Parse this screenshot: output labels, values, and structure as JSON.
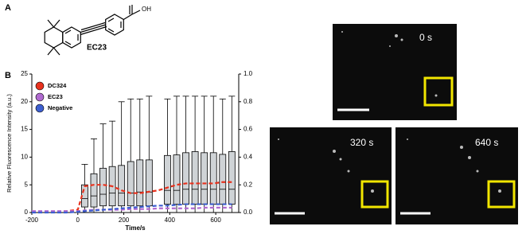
{
  "panel_labels": [
    "A",
    "B"
  ],
  "structure": {
    "name": "EC23",
    "group": "OH"
  },
  "images": [
    {
      "label": "0 s"
    },
    {
      "label": "320 s"
    },
    {
      "label": "640 s"
    }
  ],
  "chart_data": {
    "type": "box",
    "xlabel": "Time/s",
    "ylabel": "Relative Fluorescence Intensity (a.u.)",
    "xlim": [
      -200,
      700
    ],
    "xticks": [
      -200,
      0,
      200,
      400,
      600
    ],
    "ylim": [
      0,
      25
    ],
    "yticks": [
      0,
      5,
      10,
      15,
      20,
      25
    ],
    "y2lim": [
      0,
      1
    ],
    "y2ticks": [
      {
        "value": 0,
        "label": "0.0"
      },
      0.2,
      0.4,
      0.6,
      0.8,
      {
        "value": 1,
        "label": "1.0"
      }
    ],
    "legend": "upper left",
    "box_color": "#cfd3d6",
    "boxes": {
      "x": [
        30,
        70,
        110,
        150,
        190,
        230,
        270,
        310,
        390,
        430,
        470,
        510,
        550,
        590,
        630,
        670
      ],
      "whisker_low": [
        0,
        0,
        0,
        0,
        0,
        0,
        0,
        0,
        0,
        0,
        0,
        0,
        0,
        0,
        0,
        0
      ],
      "q1": [
        1,
        1,
        1.2,
        1.2,
        1.2,
        1.2,
        1.2,
        1.2,
        1.5,
        1.5,
        1.5,
        1.5,
        1.5,
        1.5,
        1.5,
        1.5
      ],
      "median": [
        2.5,
        3,
        3.3,
        3.5,
        3.5,
        3.5,
        3.7,
        3.7,
        4,
        4,
        4.2,
        4.2,
        4.2,
        4.2,
        4.2,
        4.2
      ],
      "q3": [
        5,
        7,
        8,
        8.3,
        8.5,
        9.2,
        9.5,
        9.5,
        10.3,
        10.4,
        10.8,
        11,
        10.8,
        10.8,
        10.5,
        11
      ],
      "whisker_high": [
        8.7,
        13.3,
        16,
        16.5,
        20,
        20.5,
        20.5,
        21,
        20.5,
        21,
        21,
        21,
        21,
        21,
        20.5,
        21
      ]
    },
    "x": [
      -200,
      -150,
      -100,
      -50,
      0,
      30,
      70,
      110,
      150,
      190,
      230,
      270,
      310,
      350,
      390,
      430,
      470,
      510,
      550,
      590,
      630,
      670
    ],
    "series": [
      {
        "name": "DC324",
        "color": "#e8321e",
        "axis": "y2",
        "values": [
          0.005,
          0.005,
          0.005,
          0.01,
          0.02,
          0.19,
          0.2,
          0.2,
          0.19,
          0.16,
          0.14,
          0.14,
          0.15,
          0.16,
          0.18,
          0.2,
          0.21,
          0.21,
          0.21,
          0.21,
          0.22,
          0.22
        ]
      },
      {
        "name": "EC23",
        "color": "#b06ad0",
        "axis": "y2",
        "values": [
          0.01,
          0.01,
          0.01,
          0.01,
          0.01,
          0.015,
          0.02,
          0.02,
          0.02,
          0.02,
          0.025,
          0.025,
          0.025,
          0.03,
          0.03,
          0.03,
          0.03,
          0.03,
          0.035,
          0.035,
          0.035,
          0.035
        ]
      },
      {
        "name": "Negative",
        "color": "#3d5fd0",
        "axis": "y2",
        "values": [
          0,
          0,
          0,
          0,
          0.005,
          0.01,
          0.015,
          0.02,
          0.025,
          0.03,
          0.035,
          0.04,
          0.045,
          0.05,
          0.05,
          0.055,
          0.06,
          0.06,
          0.06,
          0.06,
          0.06,
          0.06
        ]
      }
    ]
  }
}
